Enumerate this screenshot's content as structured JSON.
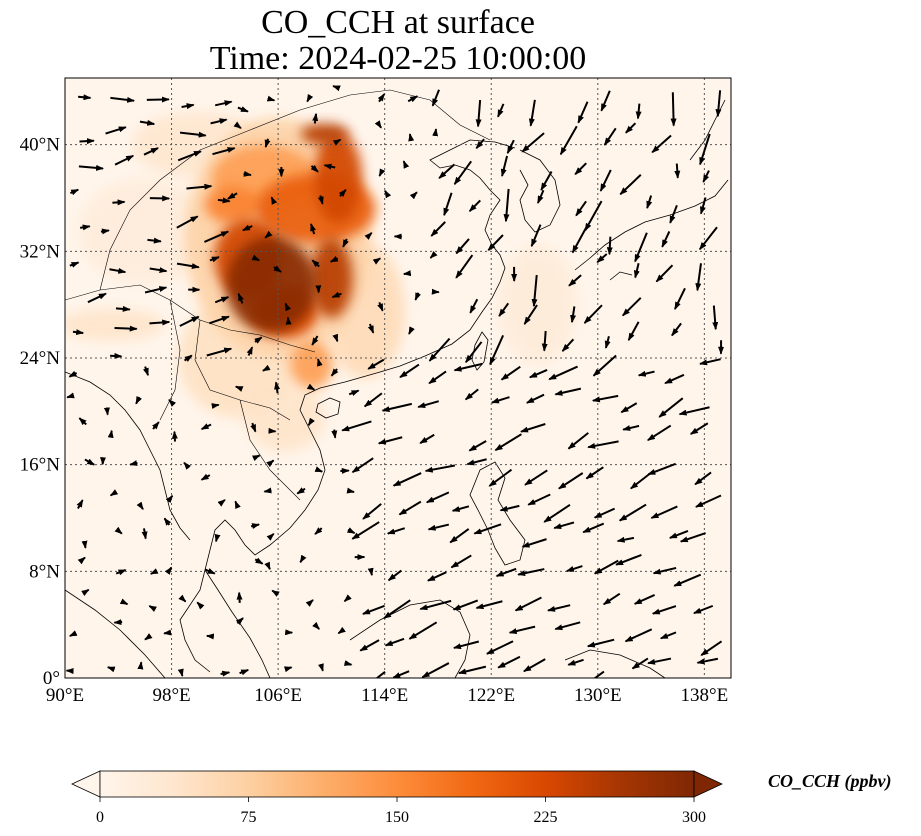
{
  "title_line1": "CO_CCH at surface",
  "title_line2": "Time: 2024-02-25 10:00:00",
  "map": {
    "lon_range": [
      90,
      140
    ],
    "lat_range": [
      0,
      45
    ],
    "lon_ticks": [
      "90°E",
      "98°E",
      "106°E",
      "114°E",
      "122°E",
      "130°E",
      "138°E"
    ],
    "lat_ticks": [
      "0°",
      "8°N",
      "16°N",
      "24°N",
      "32°N",
      "40°N"
    ],
    "gridlines": "dotted",
    "vectors": "wind arrows",
    "plumes": [
      {
        "lon": 105.5,
        "lat": 29.5,
        "rx": 3.4,
        "ry": 3.6,
        "level": 290
      },
      {
        "lon": 103.8,
        "lat": 31.5,
        "rx": 2.6,
        "ry": 3.0,
        "level": 230
      },
      {
        "lon": 110.0,
        "lat": 30.0,
        "rx": 1.6,
        "ry": 3.0,
        "level": 250
      },
      {
        "lon": 108.8,
        "lat": 35.2,
        "rx": 4.5,
        "ry": 2.6,
        "level": 200
      },
      {
        "lon": 110.5,
        "lat": 37.5,
        "rx": 1.8,
        "ry": 3.4,
        "level": 230
      },
      {
        "lon": 109.5,
        "lat": 40.8,
        "rx": 1.8,
        "ry": 0.8,
        "level": 250
      },
      {
        "lon": 102.5,
        "lat": 35.5,
        "rx": 2.0,
        "ry": 1.4,
        "level": 160
      },
      {
        "lon": 105.0,
        "lat": 37.5,
        "rx": 4.0,
        "ry": 2.5,
        "level": 130
      },
      {
        "lon": 106.5,
        "lat": 27.5,
        "rx": 2.5,
        "ry": 2.0,
        "level": 220
      },
      {
        "lon": 108.5,
        "lat": 23.5,
        "rx": 1.6,
        "ry": 1.8,
        "level": 130
      },
      {
        "lon": 106.0,
        "lat": 33.0,
        "rx": 7.0,
        "ry": 9.0,
        "level": 70
      },
      {
        "lon": 103.0,
        "lat": 24.0,
        "rx": 4.5,
        "ry": 4.5,
        "level": 45
      },
      {
        "lon": 93.5,
        "lat": 26.5,
        "rx": 4.0,
        "ry": 1.2,
        "level": 40
      },
      {
        "lon": 100.0,
        "lat": 40.0,
        "rx": 5.0,
        "ry": 2.5,
        "level": 35
      },
      {
        "lon": 112.5,
        "lat": 27.5,
        "rx": 3.0,
        "ry": 5.0,
        "level": 55
      },
      {
        "lon": 106.5,
        "lat": 19.5,
        "rx": 3.0,
        "ry": 2.5,
        "level": 40
      },
      {
        "lon": 125.5,
        "lat": 28.0,
        "rx": 3.0,
        "ry": 4.5,
        "level": 22
      },
      {
        "lon": 96.0,
        "lat": 33.5,
        "rx": 5.0,
        "ry": 4.0,
        "level": 20
      }
    ]
  },
  "colorbar": {
    "title": "CO_CCH (ppbv)",
    "min": 0,
    "max": 300,
    "ticks": [
      "0",
      "75",
      "150",
      "225",
      "300"
    ],
    "colormap": [
      "#fff5eb",
      "#fee6ce",
      "#fdd0a2",
      "#fdae6b",
      "#fd8d3c",
      "#f16913",
      "#d94801",
      "#a63603",
      "#7f2704"
    ],
    "extend": "both"
  }
}
